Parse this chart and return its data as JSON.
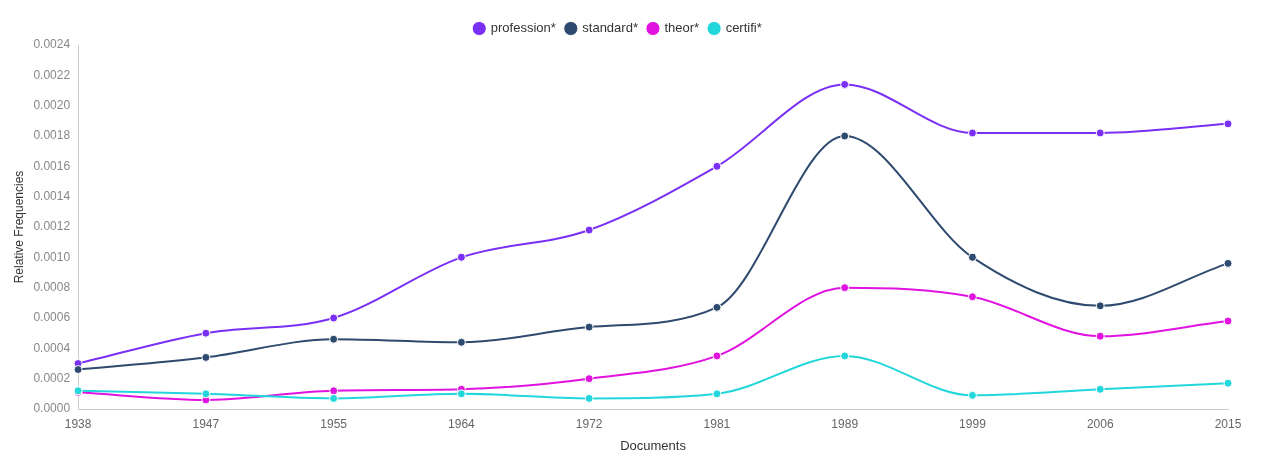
{
  "chart_data": {
    "type": "line",
    "xlabel": "Documents",
    "ylabel": "Relative Frequencies",
    "categories": [
      "1938",
      "1947",
      "1955",
      "1964",
      "1972",
      "1981",
      "1989",
      "1999",
      "2006",
      "2015"
    ],
    "series": [
      {
        "name": "profession*",
        "color": "#7a2ff5",
        "values": [
          0.0003,
          0.0005,
          0.0006,
          0.001,
          0.00118,
          0.0016,
          0.00214,
          0.00182,
          0.00182,
          0.00188
        ]
      },
      {
        "name": "standard*",
        "color": "#2e4a6e",
        "values": [
          0.00026,
          0.00034,
          0.00046,
          0.00044,
          0.00054,
          0.00067,
          0.0018,
          0.001,
          0.00068,
          0.00096
        ]
      },
      {
        "name": "theor*",
        "color": "#e013e0",
        "values": [
          0.00011,
          6e-05,
          0.00012,
          0.00013,
          0.0002,
          0.00035,
          0.0008,
          0.00074,
          0.00048,
          0.00058
        ]
      },
      {
        "name": "certifi*",
        "color": "#22d6db",
        "values": [
          0.00012,
          0.0001,
          7e-05,
          0.0001,
          7e-05,
          0.0001,
          0.00035,
          9e-05,
          0.00013,
          0.00017
        ]
      }
    ],
    "ylim": [
      0,
      0.0024
    ],
    "yticks": [
      {
        "value": 0,
        "label": "0.0000"
      },
      {
        "value": 0.0002,
        "label": "0.0002"
      },
      {
        "value": 0.0004,
        "label": "0.0004"
      },
      {
        "value": 0.0006,
        "label": "0.0006"
      },
      {
        "value": 0.0008,
        "label": "0.0008"
      },
      {
        "value": 0.001,
        "label": "0.0010"
      },
      {
        "value": 0.0012,
        "label": "0.0012"
      },
      {
        "value": 0.0014,
        "label": "0.0014"
      },
      {
        "value": 0.0016,
        "label": "0.0016"
      },
      {
        "value": 0.0018,
        "label": "0.0018"
      },
      {
        "value": 0.002,
        "label": "0.0020"
      },
      {
        "value": 0.0022,
        "label": "0.0022"
      },
      {
        "value": 0.0024,
        "label": "0.0024"
      }
    ],
    "legend": "top",
    "grid": false,
    "marker": "circle",
    "line_style": "solid"
  }
}
